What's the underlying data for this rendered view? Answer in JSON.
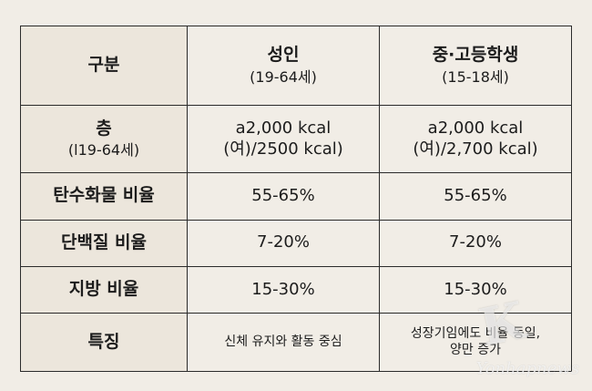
{
  "table": {
    "header": {
      "label": "구분",
      "adult_title": "성인",
      "adult_sub": "(19-64세)",
      "teen_title": "중·고등학생",
      "teen_sub": "(15-18세)"
    },
    "rows": [
      {
        "label": "층",
        "label_sub": "(l19-64세)",
        "adult": [
          "a2,000 kcal",
          "(여)/2500 kcal)"
        ],
        "teen": [
          "a2,000 kcal",
          "(여)/2,700 kcal)"
        ]
      },
      {
        "label": "탄수화물 비율",
        "adult": "55-65%",
        "teen": "55-65%"
      },
      {
        "label": "단백질 비율",
        "adult": "7-20%",
        "teen": "7-20%"
      },
      {
        "label": "지방 비율",
        "adult": "15-30%",
        "teen": "15-30%"
      },
      {
        "label": "특징",
        "adult": "신체 유지와 활동 중심",
        "teen": [
          "성장기임에도 비율 동일,",
          "양만 증가"
        ]
      }
    ]
  },
  "watermark": {
    "letter": "K",
    "text": "Yonhapnews"
  }
}
